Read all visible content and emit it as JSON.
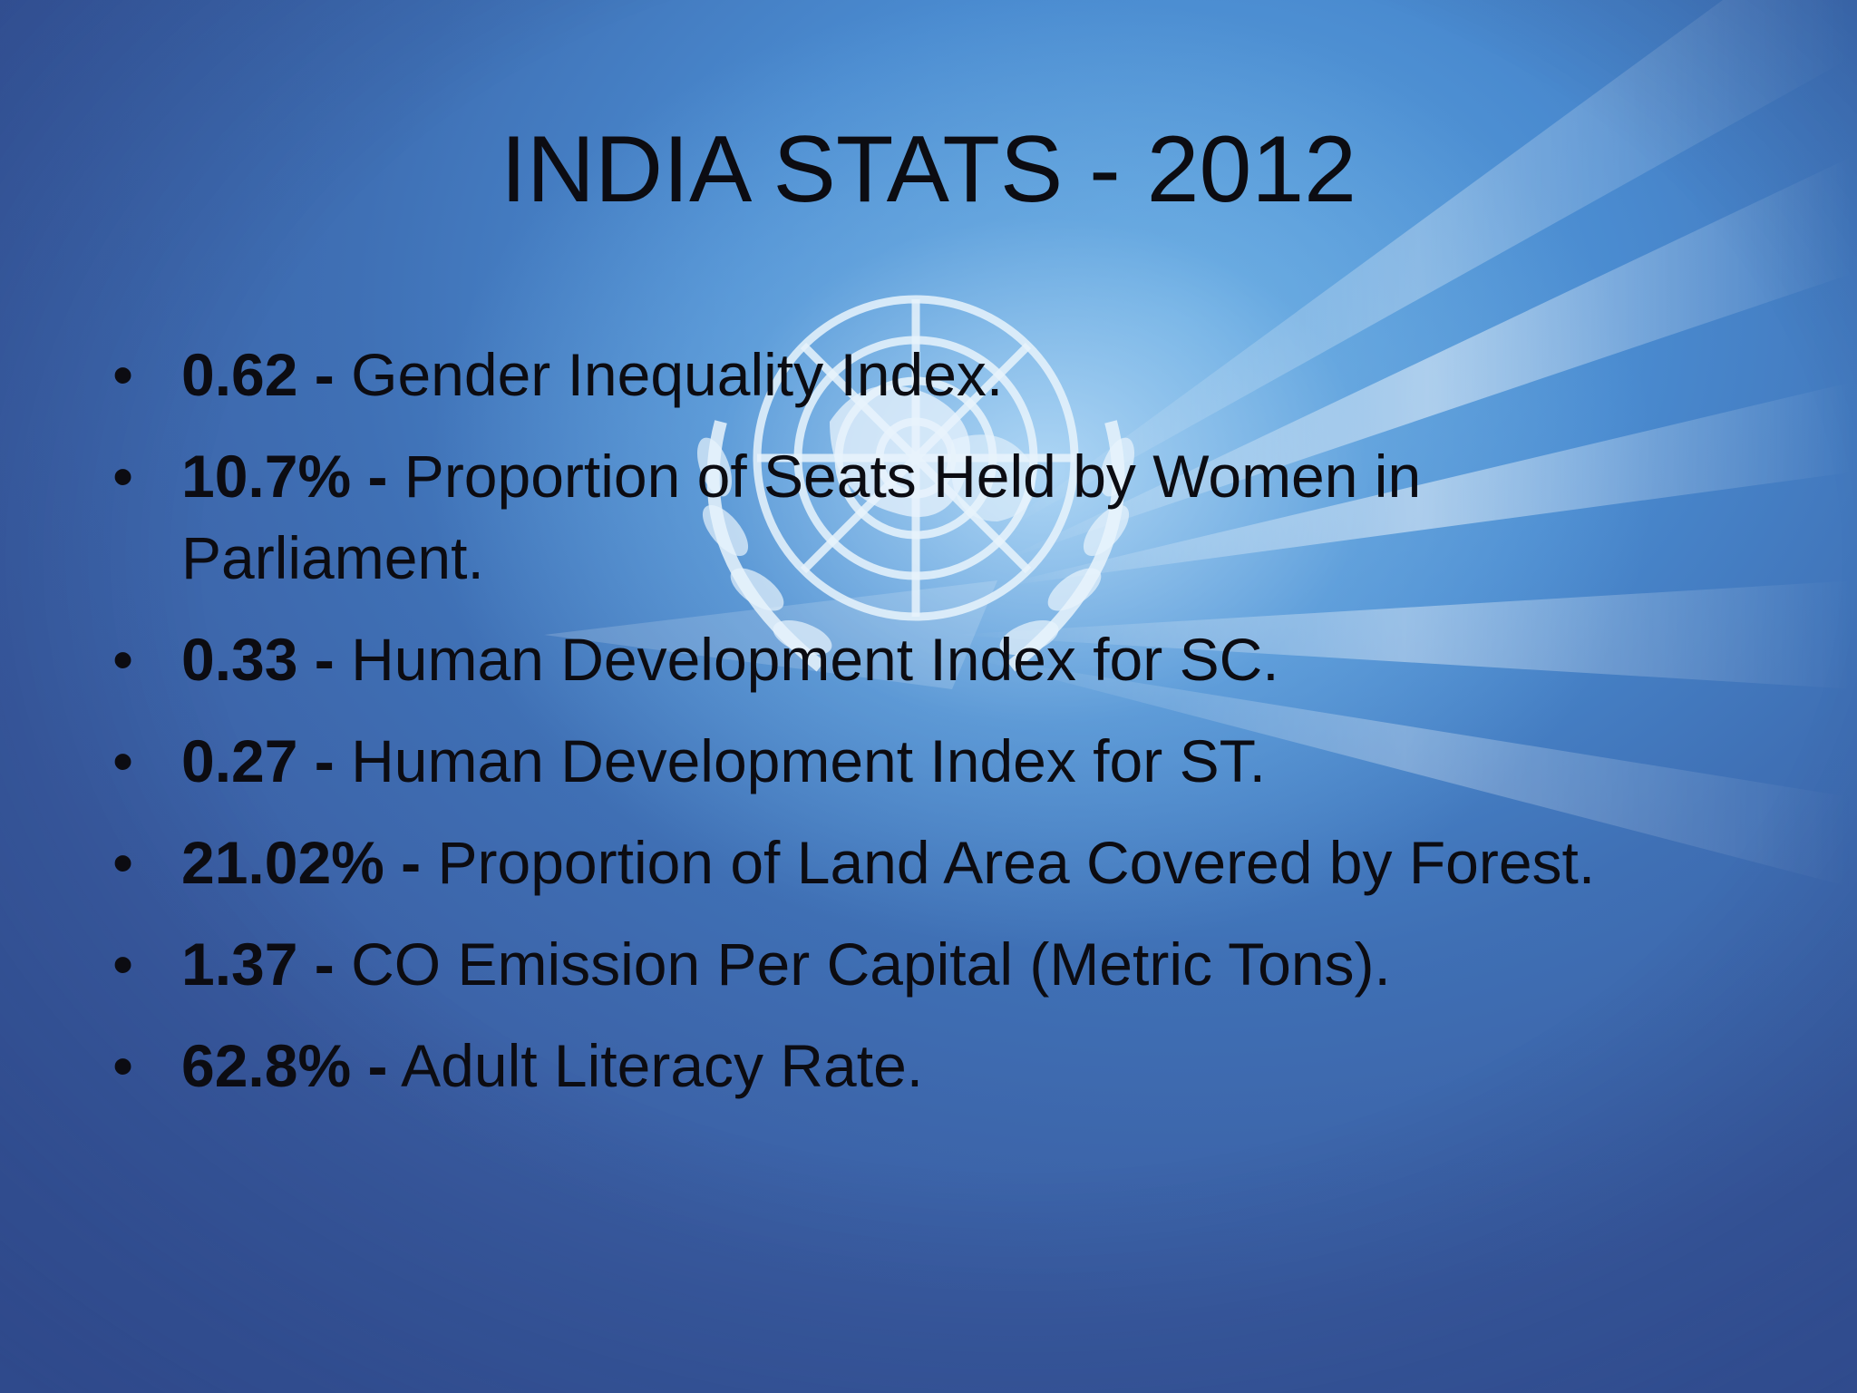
{
  "slide": {
    "title": "INDIA STATS - 2012",
    "bullet_glyph": "•",
    "background_colors": {
      "deep_blue": "#3b5ea3",
      "mid_blue": "#4a8bd0",
      "light_glow": "#bee1fa",
      "text": "#0c0c12"
    },
    "emblem": "un-emblem-icon",
    "items": [
      {
        "value": "0.62 -",
        "text": " Gender Inequality Index."
      },
      {
        "value": "10.7% -",
        "text": " Proportion of Seats Held by Women in Parliament."
      },
      {
        "value": "0.33 -",
        "text": " Human Development Index for SC."
      },
      {
        "value": "0.27 -",
        "text": " Human Development Index for ST."
      },
      {
        "value": "21.02% -",
        "text": " Proportion of Land Area Covered by Forest."
      },
      {
        "value": "1.37 -",
        "text": " CO Emission Per Capital (Metric Tons)."
      },
      {
        "value": "62.8% -",
        "text": " Adult Literacy Rate."
      }
    ]
  }
}
